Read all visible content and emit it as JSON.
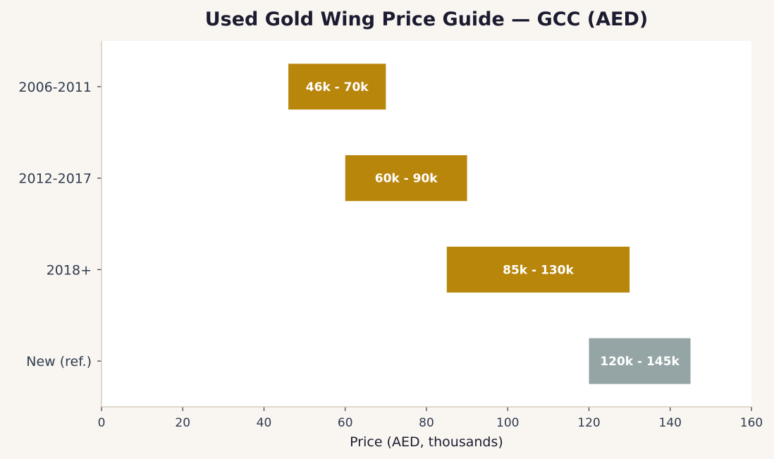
{
  "chart_data": {
    "type": "bar",
    "orientation": "horizontal",
    "subtype": "range",
    "title": "Used Gold Wing Price Guide — GCC (AED)",
    "xlabel": "Price (AED, thousands)",
    "ylabel": "",
    "xlim": [
      0,
      160
    ],
    "xticks": [
      0,
      20,
      40,
      60,
      80,
      100,
      120,
      140,
      160
    ],
    "grid": false,
    "categories": [
      "2006-2011",
      "2012-2017",
      "2018+",
      "New (ref.)"
    ],
    "series": [
      {
        "values": [
          {
            "low": 46,
            "high": 70
          },
          {
            "low": 60,
            "high": 90
          },
          {
            "low": 85,
            "high": 130
          },
          {
            "low": 120,
            "high": 145
          }
        ],
        "labels": [
          "46k - 70k",
          "60k - 90k",
          "85k - 130k",
          "120k - 145k"
        ],
        "colors": [
          "#b8860b",
          "#b8860b",
          "#b8860b",
          "#95a5a6"
        ]
      }
    ],
    "colors": {
      "background": "#f9f6f1",
      "plot_background": "#ffffff",
      "used_bar": "#b8860b",
      "new_bar": "#95a5a6",
      "axis": "#d5cbbb"
    }
  }
}
